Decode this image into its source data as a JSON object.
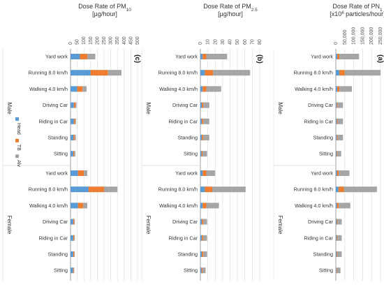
{
  "colors": {
    "head": "#5B9BD5",
    "tb": "#ED7D31",
    "alv": "#A5A5A5",
    "grid": "#D9D9D9",
    "axis": "#8C8C8C"
  },
  "chart_data": [
    {
      "type": "bar",
      "orientation": "horizontal",
      "stacked": true,
      "title": "Dose Rate of PM10",
      "title_prefix": "Dose Rate of PM",
      "title_sub": "10",
      "unit": "[µg/hour]",
      "panel_label": "(c)",
      "xlim": [
        0,
        500
      ],
      "ticks": [
        "0",
        "50",
        "100",
        "150",
        "200",
        "250",
        "300",
        "350",
        "400",
        "450",
        "500"
      ],
      "legend": [
        "Head",
        "TB",
        "Alv"
      ],
      "groups": [
        {
          "label": "Male",
          "categories": [
            "Yard work",
            "Running 8.0 km/h",
            "Walking 4.0 km/h",
            "Driving Car",
            "Riding in Car",
            "Standing",
            "Sitting"
          ],
          "series": [
            {
              "name": "Head",
              "values": [
                70,
                150,
                50,
                25,
                25,
                22,
                20
              ]
            },
            {
              "name": "TB",
              "values": [
                55,
                130,
                40,
                12,
                10,
                10,
                8
              ]
            },
            {
              "name": "Alv",
              "values": [
                60,
                100,
                30,
                8,
                6,
                8,
                8
              ]
            }
          ]
        },
        {
          "label": "Female",
          "categories": [
            "Yard work",
            "Running 8.0 km/h",
            "Walking 4.0 km/h",
            "Driving Car",
            "Riding in Car",
            "Standing",
            "Sitting"
          ],
          "series": [
            {
              "name": "Head",
              "values": [
                55,
                135,
                55,
                20,
                20,
                20,
                18
              ]
            },
            {
              "name": "TB",
              "values": [
                45,
                115,
                40,
                8,
                8,
                8,
                6
              ]
            },
            {
              "name": "Alv",
              "values": [
                25,
                100,
                30,
                4,
                4,
                4,
                4
              ]
            }
          ]
        }
      ]
    },
    {
      "type": "bar",
      "orientation": "horizontal",
      "stacked": true,
      "title": "Dose Rate of PM2.5",
      "title_prefix": "Dose Rate of PM",
      "title_sub": "2.5",
      "unit": "[µg/hour]",
      "panel_label": "(b)",
      "xlim": [
        0,
        80
      ],
      "ticks": [
        "0",
        "10",
        "20",
        "30",
        "40",
        "50",
        "60",
        "70",
        "80"
      ],
      "legend": [
        "Head",
        "TB",
        "Alv"
      ],
      "groups": [
        {
          "label": "Male",
          "categories": [
            "Yard work",
            "Running 8.0 km/h",
            "Walking 4.0 km/h",
            "Driving Car",
            "Riding in Car",
            "Standing",
            "Sitting"
          ],
          "series": [
            {
              "name": "Head",
              "values": [
                3,
                6,
                3,
                2,
                2,
                2,
                1.5
              ]
            },
            {
              "name": "TB",
              "values": [
                5,
                11,
                5,
                2,
                2,
                2,
                1.5
              ]
            },
            {
              "name": "Alv",
              "values": [
                28,
                50,
                20,
                8,
                8,
                8,
                6
              ]
            }
          ]
        },
        {
          "label": "Female",
          "categories": [
            "Yard work",
            "Running 8.0 km/h",
            "Walking 4.0 km/h",
            "Driving Car",
            "Riding in Car",
            "Standing",
            "Sitting"
          ],
          "series": [
            {
              "name": "Head",
              "values": [
                3,
                6,
                3,
                2,
                2,
                2,
                1.5
              ]
            },
            {
              "name": "TB",
              "values": [
                5,
                10,
                5,
                2,
                2,
                2,
                1.5
              ]
            },
            {
              "name": "Alv",
              "values": [
                12,
                45,
                17,
                5,
                5,
                5,
                4
              ]
            }
          ]
        }
      ]
    },
    {
      "type": "bar",
      "orientation": "horizontal",
      "stacked": true,
      "title": "Dose Rate of PN1",
      "title_prefix": "Dose Rate of PN",
      "title_sub": "1",
      "unit_prefix": "[x10",
      "unit_sup": "6",
      "unit_suffix": " particles/hour]",
      "panel_label": "(a)",
      "xlim": [
        0,
        250000
      ],
      "ticks": [
        "0",
        "50,000",
        "100,000",
        "150,000",
        "200,000",
        "250,000"
      ],
      "legend": [
        "Head",
        "TB",
        "Alv"
      ],
      "groups": [
        {
          "label": "Male",
          "categories": [
            "Yard work",
            "Running 8.0 km/h",
            "Walking 4.0 km/h",
            "Driving Car",
            "Riding in Car",
            "Standing",
            "Sitting"
          ],
          "series": [
            {
              "name": "Head",
              "values": [
                8000,
                20000,
                8000,
                5000,
                5000,
                5000,
                4000
              ]
            },
            {
              "name": "TB",
              "values": [
                12000,
                30000,
                12000,
                5000,
                5000,
                5000,
                4000
              ]
            },
            {
              "name": "Alv",
              "values": [
                110000,
                200000,
                70000,
                30000,
                30000,
                30000,
                22000
              ]
            }
          ]
        },
        {
          "label": "Female",
          "categories": [
            "Yard work",
            "Running 8.0 km/h",
            "Walking 4.0 km/h",
            "Driving Car",
            "Riding in Car",
            "Standing",
            "Sitting"
          ],
          "series": [
            {
              "name": "Head",
              "values": [
                6000,
                15000,
                6000,
                4000,
                4000,
                4000,
                3000
              ]
            },
            {
              "name": "TB",
              "values": [
                10000,
                30000,
                10000,
                4000,
                4000,
                4000,
                3000
              ]
            },
            {
              "name": "Alv",
              "values": [
                60000,
                185000,
                65000,
                25000,
                25000,
                25000,
                20000
              ]
            }
          ]
        }
      ]
    }
  ]
}
